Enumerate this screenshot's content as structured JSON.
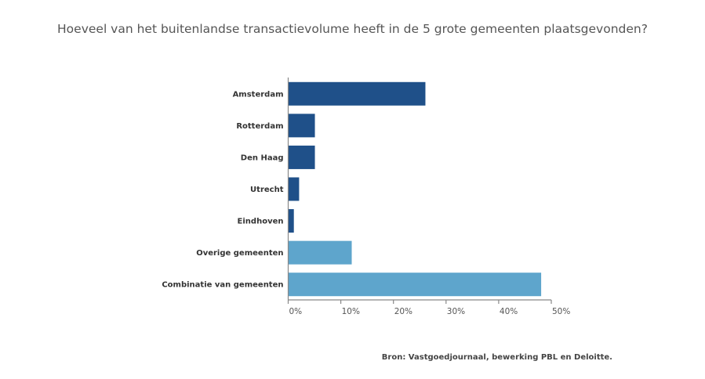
{
  "chart_data": {
    "type": "bar",
    "orientation": "horizontal",
    "title": "Hoeveel van het buitenlandse transactievolume heeft in de 5 grote gemeenten plaatsgevonden?",
    "categories": [
      "Amsterdam",
      "Rotterdam",
      "Den Haag",
      "Utrecht",
      "Eindhoven",
      "Overige gemeenten",
      "Combinatie van gemeenten"
    ],
    "values": [
      26,
      5,
      5,
      2,
      1,
      12,
      48
    ],
    "colors": [
      "#1f5089",
      "#1f5089",
      "#1f5089",
      "#1f5089",
      "#1f5089",
      "#5ea5cc",
      "#5ea5cc"
    ],
    "xlim": [
      0,
      50
    ],
    "xticks": [
      "0%",
      "10%",
      "20%",
      "30%",
      "40%",
      "50%"
    ],
    "xlabel": "",
    "ylabel": "",
    "grid": false,
    "legend": "none",
    "source": "Bron: Vastgoedjournaal, bewerking PBL en Deloitte."
  }
}
